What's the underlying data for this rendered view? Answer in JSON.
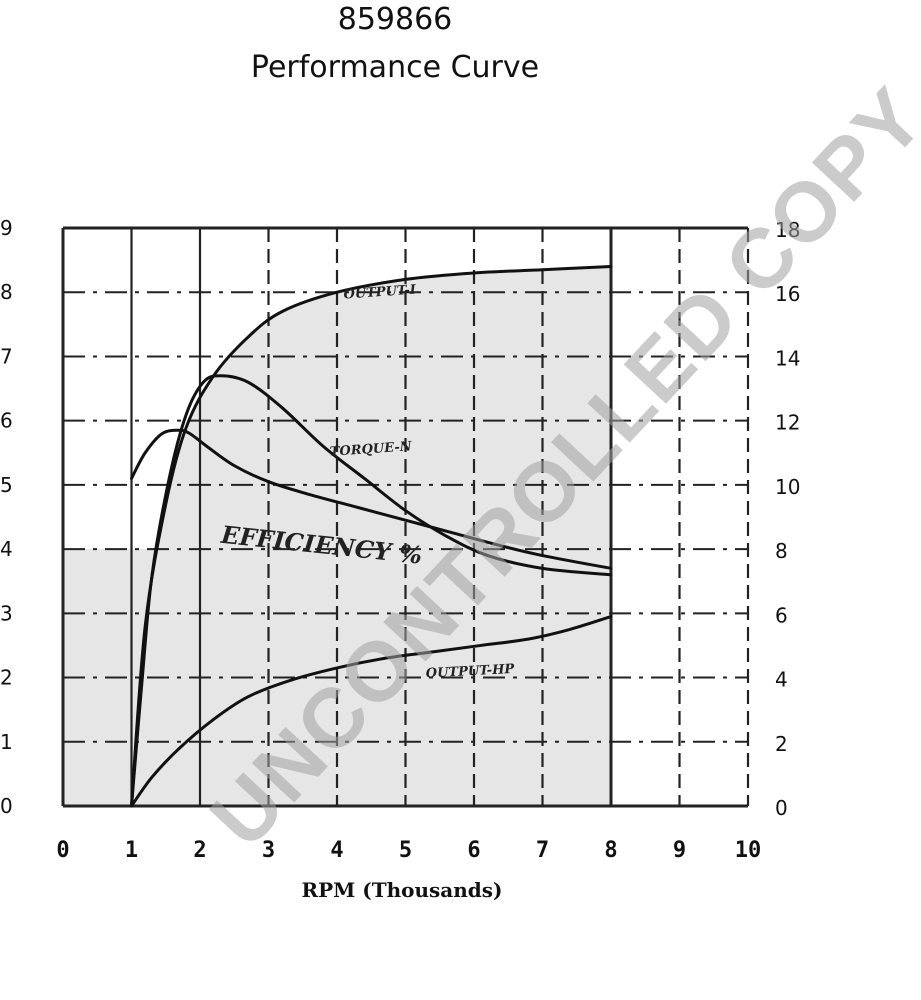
{
  "page": {
    "title_line1": "859866",
    "title_line2": "Performance Curve",
    "watermark": "UNCONTROLLED COPY"
  },
  "chart_data": {
    "type": "line",
    "title": "859866 Performance Curve",
    "xlabel": "RPM (Thousands)",
    "ylabel_left": "",
    "ylabel_right": "",
    "x_ticks": [
      "0",
      "1",
      "2",
      "3",
      "4",
      "5",
      "6",
      "7",
      "8",
      "9",
      "10"
    ],
    "y_left_ticks": [
      "0",
      "1",
      "2",
      "3",
      "4",
      "5",
      "6",
      "7",
      "8",
      "9"
    ],
    "y_right_ticks": [
      "0",
      "2",
      "4",
      "6",
      "8",
      "10",
      "12",
      "14",
      "16",
      "18"
    ],
    "xlim": [
      0,
      10
    ],
    "ylim_left": [
      0,
      9
    ],
    "ylim_right": [
      0,
      18
    ],
    "grid": true,
    "shaded_region_y_left": 4,
    "colors": {
      "curve": "#111111",
      "grid": "#222222",
      "shade": "#e6e6e6",
      "watermark": "#a0a0a0"
    },
    "series": [
      {
        "name": "OUTPUT-I",
        "label_at": [
          4.1,
          7.9
        ],
        "label_rot": -4,
        "x": [
          1.0,
          1.2,
          1.5,
          1.8,
          2.2,
          2.7,
          3.2,
          4.0,
          5.0,
          6.0,
          7.0,
          8.0
        ],
        "y": [
          0.0,
          2.8,
          4.7,
          5.9,
          6.7,
          7.3,
          7.7,
          8.0,
          8.2,
          8.3,
          8.35,
          8.4
        ]
      },
      {
        "name": "TORQUE-N",
        "label_at": [
          3.9,
          5.45
        ],
        "label_rot": -4,
        "x": [
          1.0,
          1.15,
          1.3,
          1.55,
          1.8,
          2.05,
          2.3,
          2.7,
          3.2,
          3.8,
          4.4,
          5.0,
          5.6,
          6.2,
          7.0,
          8.0
        ],
        "y": [
          0.0,
          1.9,
          3.6,
          5.1,
          6.1,
          6.6,
          6.7,
          6.6,
          6.2,
          5.6,
          5.1,
          4.6,
          4.2,
          3.9,
          3.7,
          3.6
        ]
      },
      {
        "name": "EFFICIENCY %",
        "label_at": [
          2.3,
          4.1
        ],
        "label_rot": 6,
        "x": [
          1.0,
          1.2,
          1.45,
          1.7,
          1.85,
          2.1,
          2.5,
          3.0,
          3.6,
          4.3,
          5.0,
          5.7,
          6.4,
          7.0,
          8.0
        ],
        "y": [
          5.1,
          5.5,
          5.8,
          5.85,
          5.8,
          5.6,
          5.3,
          5.05,
          4.85,
          4.65,
          4.45,
          4.25,
          4.05,
          3.9,
          3.7
        ]
      },
      {
        "name": "OUTPUT-HP",
        "label_at": [
          5.3,
          2.0
        ],
        "label_rot": -3,
        "x": [
          1.0,
          1.3,
          1.7,
          2.2,
          2.7,
          3.3,
          4.0,
          4.7,
          5.4,
          6.1,
          6.8,
          7.4,
          8.0
        ],
        "y": [
          0.0,
          0.45,
          0.9,
          1.35,
          1.7,
          1.95,
          2.15,
          2.3,
          2.4,
          2.5,
          2.6,
          2.75,
          2.95
        ]
      }
    ]
  }
}
